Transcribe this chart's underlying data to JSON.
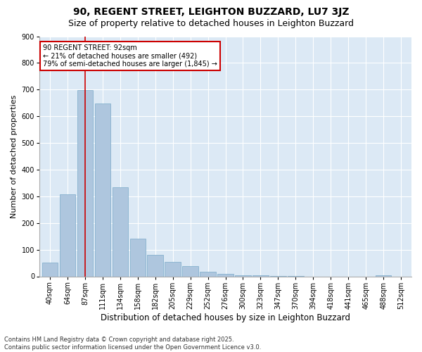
{
  "title": "90, REGENT STREET, LEIGHTON BUZZARD, LU7 3JZ",
  "subtitle": "Size of property relative to detached houses in Leighton Buzzard",
  "xlabel": "Distribution of detached houses by size in Leighton Buzzard",
  "ylabel": "Number of detached properties",
  "categories": [
    "40sqm",
    "64sqm",
    "87sqm",
    "111sqm",
    "134sqm",
    "158sqm",
    "182sqm",
    "205sqm",
    "229sqm",
    "252sqm",
    "276sqm",
    "300sqm",
    "323sqm",
    "347sqm",
    "370sqm",
    "394sqm",
    "418sqm",
    "441sqm",
    "465sqm",
    "488sqm",
    "512sqm"
  ],
  "values": [
    52,
    308,
    697,
    648,
    335,
    142,
    80,
    55,
    38,
    18,
    8,
    5,
    3,
    2,
    1,
    0,
    0,
    0,
    0,
    5,
    0
  ],
  "bar_color": "#aec6de",
  "bar_edge_color": "#7aaac8",
  "bg_color": "#dce9f5",
  "vline_x_index": 2,
  "vline_color": "#cc0000",
  "annotation_line1": "90 REGENT STREET: 92sqm",
  "annotation_line2": "← 21% of detached houses are smaller (492)",
  "annotation_line3": "79% of semi-detached houses are larger (1,845) →",
  "annotation_box_color": "#cc0000",
  "ylim": [
    0,
    900
  ],
  "yticks": [
    0,
    100,
    200,
    300,
    400,
    500,
    600,
    700,
    800,
    900
  ],
  "footer": "Contains HM Land Registry data © Crown copyright and database right 2025.\nContains public sector information licensed under the Open Government Licence v3.0.",
  "title_fontsize": 10,
  "subtitle_fontsize": 9,
  "xlabel_fontsize": 8.5,
  "ylabel_fontsize": 8,
  "tick_fontsize": 7,
  "footer_fontsize": 6,
  "annotation_fontsize": 7
}
